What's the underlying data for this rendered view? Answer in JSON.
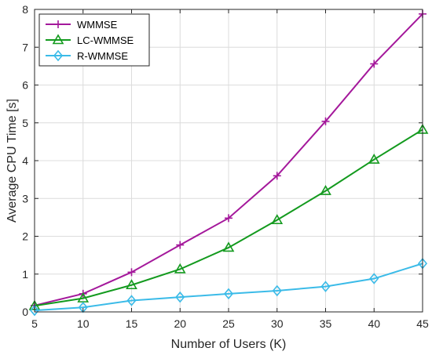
{
  "chart_data": {
    "type": "line",
    "title": "",
    "xlabel": "Number of Users (K)",
    "ylabel": "Average CPU Time [s]",
    "x": [
      5,
      10,
      15,
      20,
      25,
      30,
      35,
      40,
      45
    ],
    "xlim": [
      5,
      45
    ],
    "ylim": [
      0,
      8
    ],
    "xticks": [
      "5",
      "10",
      "15",
      "20",
      "25",
      "30",
      "35",
      "40",
      "45"
    ],
    "yticks": [
      "0",
      "1",
      "2",
      "3",
      "4",
      "5",
      "6",
      "7",
      "8"
    ],
    "grid": true,
    "legend_position": "top-left",
    "series": [
      {
        "name": "WMMSE",
        "color": "#a4189b",
        "marker": "plus",
        "values": [
          0.17,
          0.48,
          1.05,
          1.77,
          2.48,
          3.6,
          5.04,
          6.56,
          7.88
        ]
      },
      {
        "name": "LC-WMMSE",
        "color": "#139a1e",
        "marker": "triangle",
        "values": [
          0.16,
          0.36,
          0.71,
          1.13,
          1.7,
          2.43,
          3.2,
          4.03,
          4.82
        ]
      },
      {
        "name": "R-WMMSE",
        "color": "#3bbbe8",
        "marker": "diamond",
        "values": [
          0.04,
          0.12,
          0.3,
          0.39,
          0.48,
          0.56,
          0.67,
          0.88,
          1.28
        ]
      }
    ]
  }
}
